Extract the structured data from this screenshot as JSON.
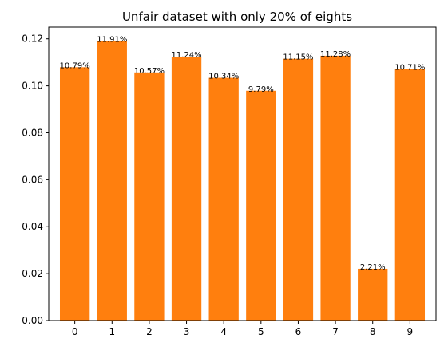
{
  "chart_data": {
    "type": "bar",
    "title": "Unfair dataset with only 20% of eights",
    "xlabel": "",
    "ylabel": "",
    "categories": [
      "0",
      "1",
      "2",
      "3",
      "4",
      "5",
      "6",
      "7",
      "8",
      "9"
    ],
    "values": [
      0.1079,
      0.1191,
      0.1057,
      0.1124,
      0.1034,
      0.0979,
      0.1115,
      0.1128,
      0.0221,
      0.1071
    ],
    "data_labels": [
      "10.79%",
      "11.91%",
      "10.57%",
      "11.24%",
      "10.34%",
      "9.79%",
      "11.15%",
      "11.28%",
      "2.21%",
      "10.71%"
    ],
    "ylim": [
      0,
      0.125
    ],
    "yticks": [
      0,
      0.02,
      0.04,
      0.06,
      0.08,
      0.1,
      0.12
    ],
    "ytick_labels": [
      "0.00",
      "0.02",
      "0.04",
      "0.06",
      "0.08",
      "0.10",
      "0.12"
    ],
    "grid": false,
    "bar_color": "#ff7f0e"
  }
}
